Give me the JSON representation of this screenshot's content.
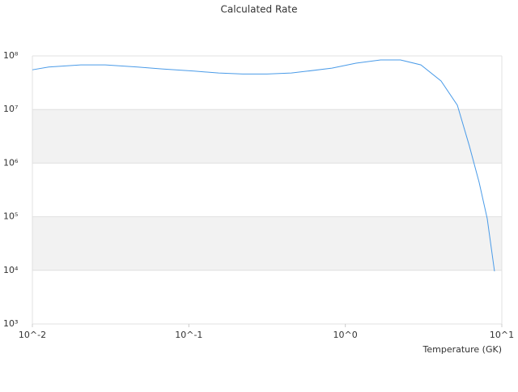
{
  "chart_data": {
    "type": "line",
    "title": "Calculated Rate",
    "x_label": "Temperature (GK)",
    "x_log": true,
    "y_log": true,
    "bands": true,
    "x": [
      0.01,
      0.0127,
      0.0204,
      0.0292,
      0.047,
      0.0673,
      0.108,
      0.155,
      0.221,
      0.316,
      0.452,
      0.574,
      0.821,
      1.17,
      1.68,
      2.25,
      3.04,
      4.09,
      5.2,
      6.2,
      7.16,
      8.07,
      8.98
    ],
    "series": [
      {
        "name": "Calculated Rate",
        "color": "#4a9be8",
        "values": [
          55000000,
          62000000,
          68000000,
          68000000,
          62000000,
          57000000,
          52000000,
          48000000,
          46000000,
          46000000,
          48000000,
          52000000,
          59000000,
          73000000,
          84000000,
          84000000,
          68000000,
          34000000,
          12000000,
          2100000,
          440000,
          92000,
          9600
        ]
      }
    ],
    "xlim": [
      0.01,
      10
    ],
    "ylim": [
      1000,
      100000000
    ],
    "xticks": [
      {
        "value": 0.01,
        "label": "10^-2"
      },
      {
        "value": 0.1,
        "label": "10^-1"
      },
      {
        "value": 1,
        "label": "10^0"
      },
      {
        "value": 10,
        "label": "10^1"
      }
    ],
    "yticks": [
      {
        "value": 1000,
        "label": "10³"
      },
      {
        "value": 10000,
        "label": "10⁴"
      },
      {
        "value": 100000,
        "label": "10⁵"
      },
      {
        "value": 1000000,
        "label": "10⁶"
      },
      {
        "value": 10000000,
        "label": "10⁷"
      },
      {
        "value": 100000000,
        "label": "10⁸"
      }
    ]
  }
}
